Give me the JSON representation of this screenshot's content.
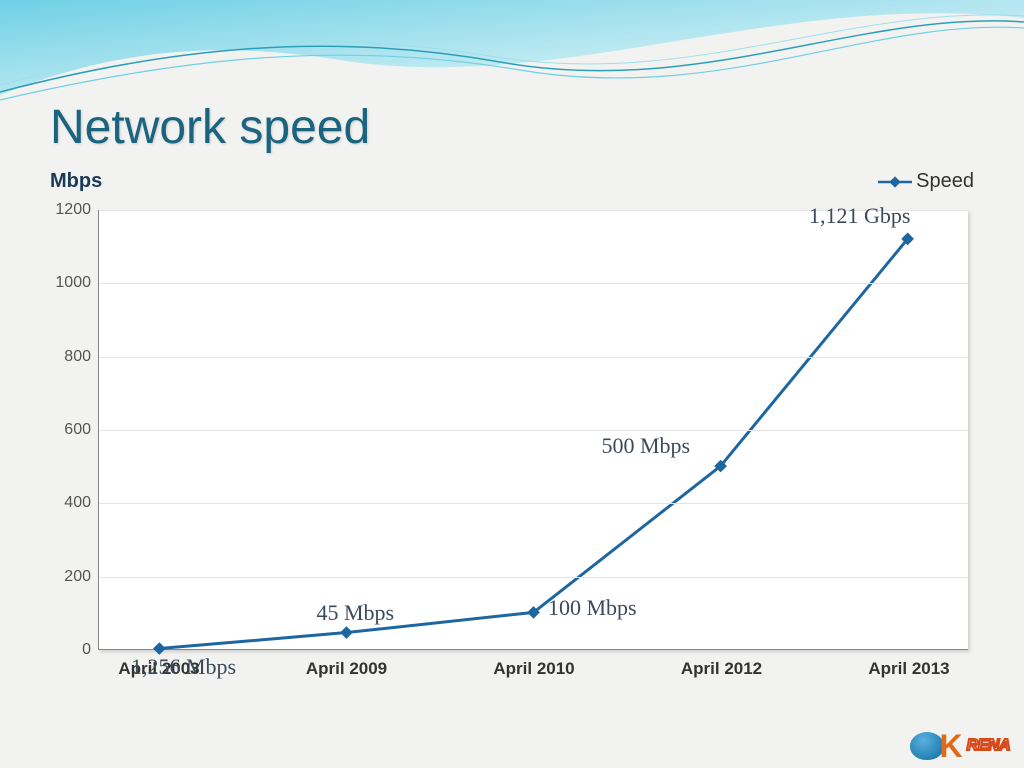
{
  "slide": {
    "title": "Network speed",
    "title_color": "#1b6480",
    "title_fontsize": 48,
    "background_color": "#f2f2f0"
  },
  "wave": {
    "fill_gradient_from": "#6fd0e6",
    "fill_gradient_to": "#ffffff",
    "stroke_colors": [
      "#2aa0b8",
      "#4ab8d0",
      "#7ad0e0"
    ]
  },
  "chart": {
    "type": "line",
    "y_title": "Mbps",
    "legend_label": "Speed",
    "legend_color": "#1e66a0",
    "line_color": "#1e66a0",
    "line_width": 3,
    "marker_style": "diamond",
    "marker_size": 9,
    "marker_fill": "#1e66a0",
    "plot_background": "#ffffff",
    "grid_color": "#e4e4e4",
    "axis_color": "#888888",
    "ylim": [
      0,
      1200
    ],
    "ytick_step": 200,
    "y_ticks": [
      0,
      200,
      400,
      600,
      800,
      1000,
      1200
    ],
    "categories": [
      "April 2003",
      "April 2009",
      "April 2010",
      "April 2012",
      "April 2013"
    ],
    "values": [
      1.256,
      45,
      100,
      500,
      1121
    ],
    "point_labels": [
      "1,256 Mbps",
      "45 Mbps",
      "100 Mbps",
      "500 Mbps",
      "1,121 Gbps"
    ],
    "label_font": "Georgia, serif",
    "label_fontsize": 22,
    "label_color": "#3a4a5a",
    "x_tick_fontsize": 17,
    "x_tick_fontweight": 700,
    "y_tick_fontsize": 16,
    "y_title_fontsize": 20,
    "y_title_fontweight": 700
  },
  "logo": {
    "text": "RENA",
    "accent_color": "#e06a1a",
    "globe_color": "#1a7aaa"
  }
}
